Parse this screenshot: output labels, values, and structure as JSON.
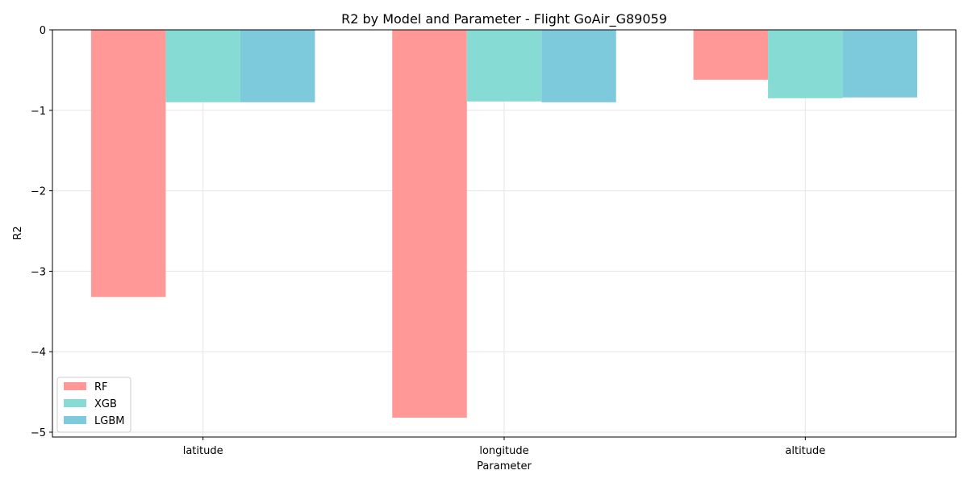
{
  "chart_data": {
    "type": "bar",
    "title": "R2 by Model and Parameter - Flight GoAir_G89059",
    "xlabel": "Parameter",
    "ylabel": "R2",
    "categories": [
      "latitude",
      "longitude",
      "altitude"
    ],
    "series": [
      {
        "name": "RF",
        "values": [
          -3.32,
          -4.82,
          -0.62
        ],
        "color": "#ff9896"
      },
      {
        "name": "XGB",
        "values": [
          -0.9,
          -0.89,
          -0.85
        ],
        "color": "#86dcd4"
      },
      {
        "name": "LGBM",
        "values": [
          -0.9,
          -0.9,
          -0.84
        ],
        "color": "#7ecadd"
      }
    ],
    "ylim": [
      -5.06,
      0
    ],
    "yticks": [
      0,
      -1,
      -2,
      -3,
      -4,
      -5
    ],
    "ytick_labels": [
      "0",
      "−1",
      "−2",
      "−3",
      "−4",
      "−5"
    ],
    "grid": true,
    "legend_position": "lower-left"
  }
}
